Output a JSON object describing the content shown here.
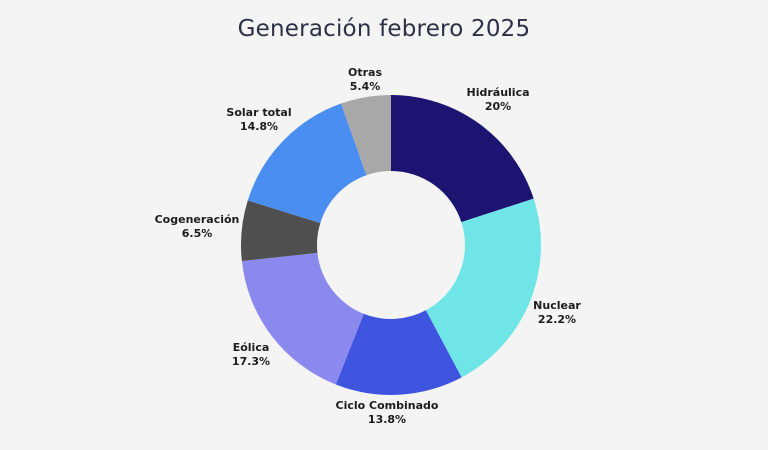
{
  "chart_data": {
    "type": "pie",
    "variant": "donut",
    "title": "Generación febrero 2025",
    "start": "top",
    "direction": "clockwise",
    "legend": "none",
    "slices": [
      {
        "label": "Hidráulica",
        "value": 20,
        "display": "20%",
        "color": "#1c1470"
      },
      {
        "label": "Nuclear",
        "value": 22.2,
        "display": "22.2%",
        "color": "#6fe5e8"
      },
      {
        "label": "Ciclo Combinado",
        "value": 13.8,
        "display": "13.8%",
        "color": "#3f55e0"
      },
      {
        "label": "Eólica",
        "value": 17.3,
        "display": "17.3%",
        "color": "#8c89ee"
      },
      {
        "label": "Cogeneración",
        "value": 6.5,
        "display": "6.5%",
        "color": "#4f4f4f"
      },
      {
        "label": "Solar total",
        "value": 14.8,
        "display": "14.8%",
        "color": "#4a8ef2"
      },
      {
        "label": "Otras",
        "value": 5.4,
        "display": "5.4%",
        "color": "#a8a8a8"
      }
    ]
  }
}
